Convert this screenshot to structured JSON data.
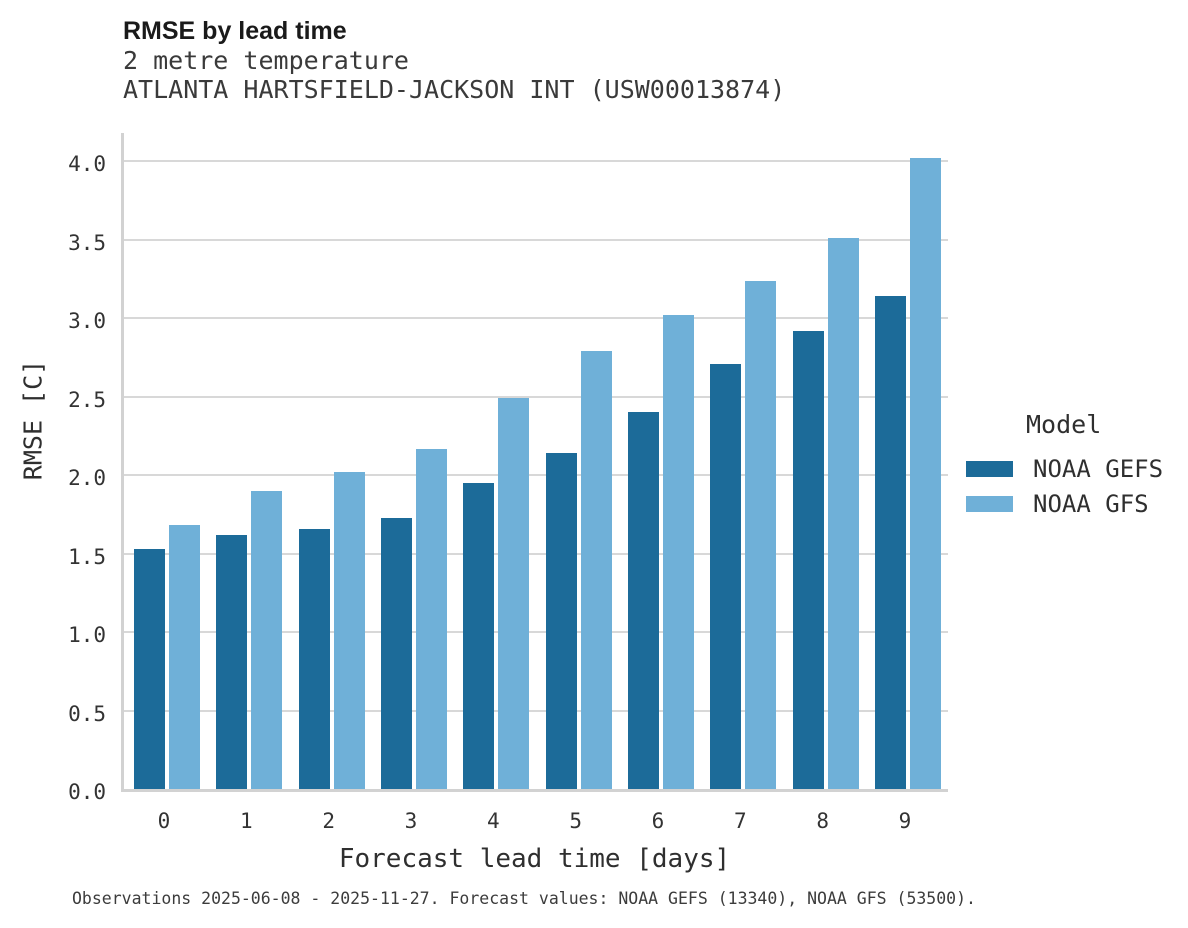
{
  "header": {
    "title": "RMSE by lead time",
    "subtitle1": "2 metre temperature",
    "subtitle2": "ATLANTA HARTSFIELD-JACKSON INT (USW00013874)"
  },
  "legend": {
    "title": "Model",
    "entries": [
      {
        "label": "NOAA GEFS",
        "color": "#1c6b99"
      },
      {
        "label": "NOAA GFS",
        "color": "#6fb0d8"
      }
    ]
  },
  "footnote": "Observations 2025-06-08 - 2025-11-27. Forecast values: NOAA GEFS (13340), NOAA GFS (53500).",
  "chart_data": {
    "type": "bar",
    "title": "RMSE by lead time",
    "subtitle": "2 metre temperature — ATLANTA HARTSFIELD-JACKSON INT (USW00013874)",
    "xlabel": "Forecast lead time [days]",
    "ylabel": "RMSE [C]",
    "categories": [
      "0",
      "1",
      "2",
      "3",
      "4",
      "5",
      "6",
      "7",
      "8",
      "9"
    ],
    "series": [
      {
        "name": "NOAA GEFS",
        "color": "#1c6b99",
        "values": [
          1.53,
          1.62,
          1.66,
          1.73,
          1.95,
          2.14,
          2.4,
          2.71,
          2.92,
          3.14
        ]
      },
      {
        "name": "NOAA GFS",
        "color": "#6fb0d8",
        "values": [
          1.68,
          1.9,
          2.02,
          2.17,
          2.49,
          2.79,
          3.02,
          3.24,
          3.51,
          4.02
        ]
      }
    ],
    "ylim": [
      0,
      4.2
    ],
    "y_ticks": [
      0.0,
      0.5,
      1.0,
      1.5,
      2.0,
      2.5,
      3.0,
      3.5,
      4.0
    ],
    "y_tick_labels": [
      "0.0",
      "0.5",
      "1.0",
      "1.5",
      "2.0",
      "2.5",
      "3.0",
      "3.5",
      "4.0"
    ],
    "grid": true,
    "legend_position": "right",
    "legend_title": "Model"
  }
}
